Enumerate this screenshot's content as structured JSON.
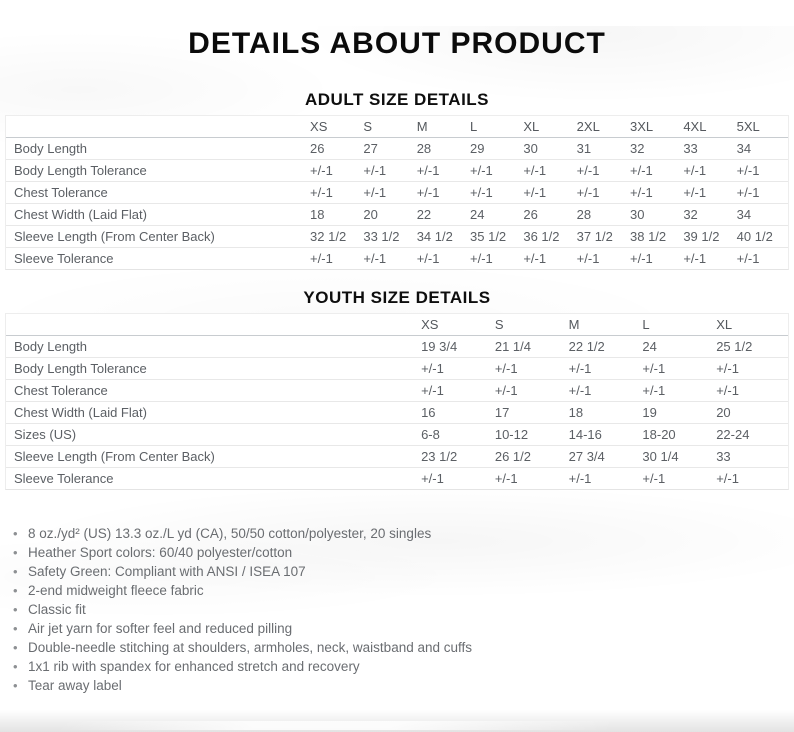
{
  "page": {
    "title": "DETAILS ABOUT PRODUCT"
  },
  "adult": {
    "heading": "ADULT SIZE DETAILS",
    "columns": [
      "XS",
      "S",
      "M",
      "L",
      "XL",
      "2XL",
      "3XL",
      "4XL",
      "5XL"
    ],
    "rows": [
      {
        "label": "Body Length",
        "values": [
          "26",
          "27",
          "28",
          "29",
          "30",
          "31",
          "32",
          "33",
          "34"
        ]
      },
      {
        "label": "Body Length Tolerance",
        "values": [
          "+/-1",
          "+/-1",
          "+/-1",
          "+/-1",
          "+/-1",
          "+/-1",
          "+/-1",
          "+/-1",
          "+/-1"
        ]
      },
      {
        "label": "Chest Tolerance",
        "values": [
          "+/-1",
          "+/-1",
          "+/-1",
          "+/-1",
          "+/-1",
          "+/-1",
          "+/-1",
          "+/-1",
          "+/-1"
        ]
      },
      {
        "label": "Chest Width (Laid Flat)",
        "values": [
          "18",
          "20",
          "22",
          "24",
          "26",
          "28",
          "30",
          "32",
          "34"
        ]
      },
      {
        "label": "Sleeve Length (From Center Back)",
        "values": [
          "32 1/2",
          "33 1/2",
          "34 1/2",
          "35 1/2",
          "36 1/2",
          "37 1/2",
          "38 1/2",
          "39 1/2",
          "40 1/2"
        ]
      },
      {
        "label": "Sleeve Tolerance",
        "values": [
          "+/-1",
          "+/-1",
          "+/-1",
          "+/-1",
          "+/-1",
          "+/-1",
          "+/-1",
          "+/-1",
          "+/-1"
        ]
      }
    ]
  },
  "youth": {
    "heading": "YOUTH SIZE DETAILS",
    "columns": [
      "XS",
      "S",
      "M",
      "L",
      "XL"
    ],
    "rows": [
      {
        "label": "Body Length",
        "values": [
          "19 3/4",
          "21 1/4",
          "22 1/2",
          "24",
          "25 1/2"
        ]
      },
      {
        "label": "Body Length Tolerance",
        "values": [
          "+/-1",
          "+/-1",
          "+/-1",
          "+/-1",
          "+/-1"
        ]
      },
      {
        "label": "Chest Tolerance",
        "values": [
          "+/-1",
          "+/-1",
          "+/-1",
          "+/-1",
          "+/-1"
        ]
      },
      {
        "label": "Chest Width (Laid Flat)",
        "values": [
          "16",
          "17",
          "18",
          "19",
          "20"
        ]
      },
      {
        "label": "Sizes (US)",
        "values": [
          "6-8",
          "10-12",
          "14-16",
          "18-20",
          "22-24"
        ]
      },
      {
        "label": "Sleeve Length (From Center Back)",
        "values": [
          "23 1/2",
          "26 1/2",
          "27 3/4",
          "30 1/4",
          "33"
        ]
      },
      {
        "label": "Sleeve Tolerance",
        "values": [
          "+/-1",
          "+/-1",
          "+/-1",
          "+/-1",
          "+/-1"
        ]
      }
    ]
  },
  "features": {
    "items": [
      "8 oz./yd² (US) 13.3 oz./L yd (CA), 50/50 cotton/polyester, 20 singles",
      "Heather Sport colors: 60/40 polyester/cotton",
      "Safety Green: Compliant with ANSI / ISEA 107",
      "2-end midweight fleece fabric",
      "Classic fit",
      "Air jet yarn for softer feel and reduced pilling",
      "Double-needle stitching at shoulders, armholes, neck, waistband and cuffs",
      "1x1 rib with spandex for enhanced stretch and recovery",
      "Tear away label"
    ]
  },
  "colors": {
    "heading_text": "#0b0b0b",
    "table_text": "#5b5f64",
    "feature_text": "#6a6d71",
    "header_rule": "#c8ccd0",
    "row_rule": "#e8e8e8"
  }
}
